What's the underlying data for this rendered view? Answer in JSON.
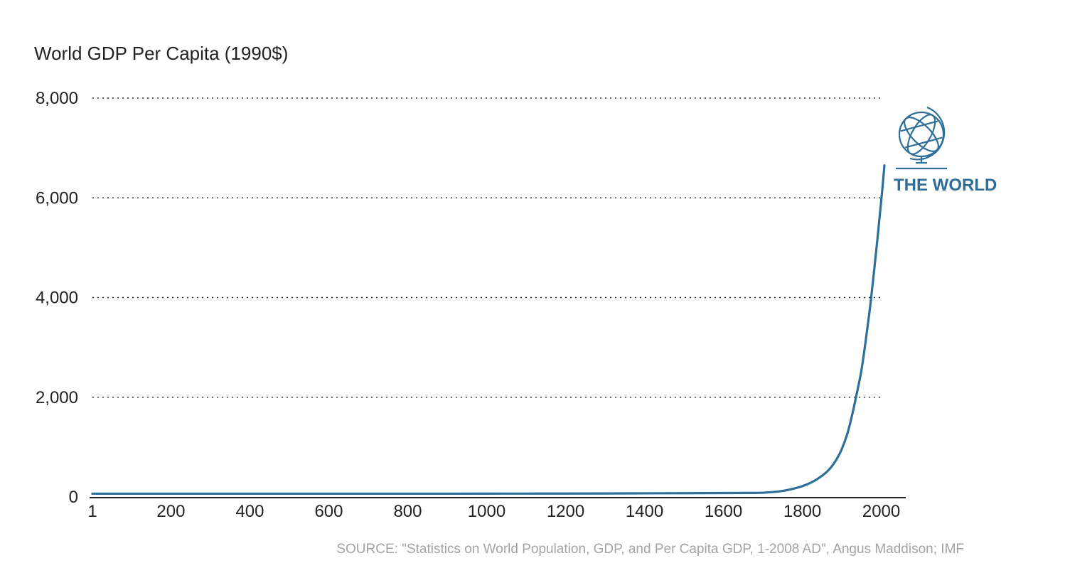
{
  "chart_data": {
    "type": "line",
    "title": "World GDP Per Capita (1990$)",
    "x_ticks": [
      "1",
      "200",
      "400",
      "600",
      "800",
      "1000",
      "1200",
      "1400",
      "1600",
      "1800",
      "2000"
    ],
    "y_ticks": [
      "0",
      "2,000",
      "4,000",
      "6,000",
      "8,000"
    ],
    "xlim": [
      1,
      2008
    ],
    "ylim": [
      0,
      8000
    ],
    "grid": "horizontal dotted",
    "series": [
      {
        "name": "THE WORLD",
        "color": "#2e6f98",
        "x": [
          1,
          100,
          200,
          300,
          400,
          500,
          600,
          700,
          800,
          900,
          1000,
          1100,
          1200,
          1300,
          1400,
          1500,
          1600,
          1650,
          1700,
          1720,
          1740,
          1760,
          1780,
          1800,
          1820,
          1840,
          1860,
          1870,
          1880,
          1890,
          1900,
          1913,
          1920,
          1930,
          1940,
          1950,
          1960,
          1970,
          1973,
          1980,
          1990,
          2000,
          2003,
          2008
        ],
        "y": [
          65,
          65,
          65,
          65,
          65,
          65,
          65,
          65,
          65,
          65,
          66,
          67,
          68,
          70,
          72,
          75,
          78,
          80,
          85,
          95,
          110,
          135,
          170,
          215,
          280,
          370,
          490,
          570,
          670,
          800,
          960,
          1240,
          1440,
          1780,
          2150,
          2550,
          3100,
          3700,
          3900,
          4400,
          5150,
          5950,
          6200,
          6650
        ]
      }
    ],
    "series_icon": "globe-icon",
    "source": "SOURCE: \"Statistics on World Population, GDP, and Per Capita GDP, 1-2008 AD\", Angus Maddison; IMF"
  }
}
